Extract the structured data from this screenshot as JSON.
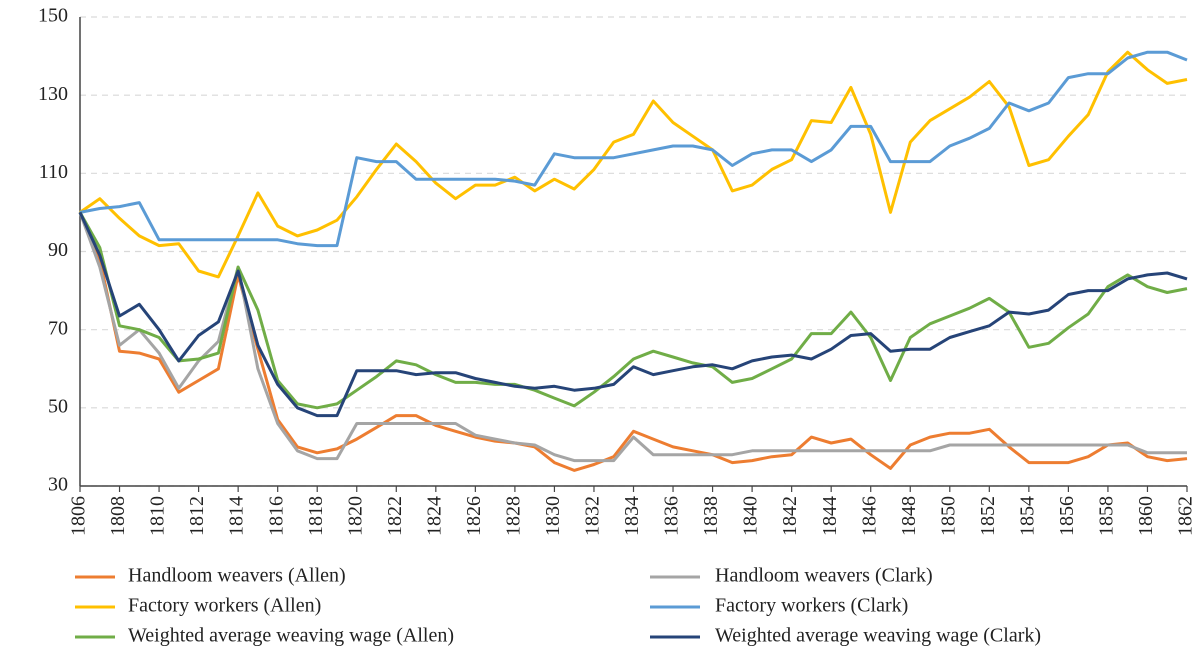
{
  "chart_data": {
    "type": "line",
    "x": [
      1806,
      1807,
      1808,
      1809,
      1810,
      1811,
      1812,
      1813,
      1814,
      1815,
      1816,
      1817,
      1818,
      1819,
      1820,
      1821,
      1822,
      1823,
      1824,
      1825,
      1826,
      1827,
      1828,
      1829,
      1830,
      1831,
      1832,
      1833,
      1834,
      1835,
      1836,
      1837,
      1838,
      1839,
      1840,
      1841,
      1842,
      1843,
      1844,
      1845,
      1846,
      1847,
      1848,
      1849,
      1850,
      1851,
      1852,
      1853,
      1854,
      1855,
      1856,
      1857,
      1858,
      1859,
      1860,
      1861,
      1862
    ],
    "xlim": [
      1806,
      1862
    ],
    "xticks": [
      1806,
      1808,
      1810,
      1812,
      1814,
      1816,
      1818,
      1820,
      1822,
      1824,
      1826,
      1828,
      1830,
      1832,
      1834,
      1836,
      1838,
      1840,
      1842,
      1844,
      1846,
      1848,
      1850,
      1852,
      1854,
      1856,
      1858,
      1860,
      1862
    ],
    "ylim": [
      30,
      150
    ],
    "yticks": [
      30,
      50,
      70,
      90,
      110,
      130,
      150
    ],
    "grid": true,
    "legend": "bottom",
    "series": [
      {
        "name": "Handloom weavers (Allen)",
        "color": "#ed7d31",
        "values": [
          100,
          88,
          64.5,
          64,
          62.5,
          54,
          57,
          60,
          84,
          65,
          47,
          40,
          38.5,
          39.5,
          42,
          45,
          48,
          48,
          45.5,
          44,
          42.5,
          41.5,
          41,
          40,
          36,
          34,
          35.5,
          37.5,
          44,
          42,
          40,
          39,
          38,
          36,
          36.5,
          37.5,
          38,
          42.5,
          41,
          42,
          38,
          34.5,
          40.5,
          42.5,
          43.5,
          43.5,
          44.5,
          40,
          36,
          36,
          36,
          37.5,
          40.5,
          41,
          37.5,
          36.5,
          37
        ]
      },
      {
        "name": "Handloom weavers (Clark)",
        "color": "#a5a5a5",
        "values": [
          100,
          86,
          66,
          70,
          64,
          55,
          62,
          67,
          86,
          60,
          46,
          39,
          37,
          37,
          46,
          46,
          46,
          46,
          46,
          46,
          43,
          42,
          41,
          40.5,
          38,
          36.5,
          36.5,
          36.5,
          42.5,
          38,
          38,
          38,
          38,
          38,
          39,
          39,
          39,
          39,
          39,
          39,
          39,
          39,
          39,
          39,
          40.5,
          40.5,
          40.5,
          40.5,
          40.5,
          40.5,
          40.5,
          40.5,
          40.5,
          40.5,
          38.5,
          38.5,
          38.5
        ]
      },
      {
        "name": "Factory workers (Allen)",
        "color": "#ffc000",
        "values": [
          100,
          103.5,
          98.5,
          94,
          91.5,
          92,
          85,
          83.5,
          94,
          105,
          96.5,
          94,
          95.5,
          98,
          104,
          111,
          117.5,
          113,
          107.5,
          103.5,
          107,
          107,
          109,
          105.5,
          108.5,
          106,
          111,
          118,
          120,
          128.5,
          123,
          119.5,
          116,
          105.5,
          107,
          111,
          113.5,
          123.5,
          123,
          132,
          120,
          100,
          118,
          123.5,
          126.5,
          129.5,
          133.5,
          127,
          112,
          113.5,
          119.5,
          125,
          136,
          141,
          136.5,
          133,
          134
        ]
      },
      {
        "name": "Factory workers (Clark)",
        "color": "#5b9bd5",
        "values": [
          100,
          101,
          101.5,
          102.5,
          93,
          93,
          93,
          93,
          93,
          93,
          93,
          92,
          91.5,
          91.5,
          114,
          113,
          113,
          108.5,
          108.5,
          108.5,
          108.5,
          108.5,
          108,
          107,
          115,
          114,
          114,
          114,
          115,
          116,
          117,
          117,
          116,
          112,
          115,
          116,
          116,
          113,
          116,
          122,
          122,
          113,
          113,
          113,
          117,
          119,
          121.5,
          128,
          126,
          128,
          134.5,
          135.5,
          135.5,
          139.5,
          141,
          141,
          139
        ]
      },
      {
        "name": "Weighted average weaving wage (Allen)",
        "color": "#70ad47",
        "values": [
          100,
          91,
          71,
          70,
          68,
          62,
          62.5,
          64,
          86,
          75,
          57,
          51,
          50,
          51,
          54.5,
          58,
          62,
          61,
          58.5,
          56.5,
          56.5,
          56,
          56,
          54.5,
          52.5,
          50.5,
          54,
          58,
          62.5,
          64.5,
          63,
          61.5,
          60.5,
          56.5,
          57.5,
          60,
          62.5,
          69,
          69,
          74.5,
          68,
          57,
          68,
          71.5,
          73.5,
          75.5,
          78,
          74.5,
          65.5,
          66.5,
          70.5,
          74,
          81,
          84,
          81,
          79.5,
          80.5
        ]
      },
      {
        "name": "Weighted average weaving wage (Clark)",
        "color": "#264478",
        "values": [
          100,
          89,
          73.5,
          76.5,
          70,
          62,
          68.5,
          72,
          85,
          66,
          56,
          50,
          48,
          48,
          59.5,
          59.5,
          59.5,
          58.5,
          59,
          59,
          57.5,
          56.5,
          55.5,
          55,
          55.5,
          54.5,
          55,
          56,
          60.5,
          58.5,
          59.5,
          60.5,
          61,
          60,
          62,
          63,
          63.5,
          62.5,
          65,
          68.5,
          69,
          64.5,
          65,
          65,
          68,
          69.5,
          71,
          74.5,
          74,
          75,
          79,
          80,
          80,
          83,
          84,
          84.5,
          83
        ]
      }
    ]
  }
}
